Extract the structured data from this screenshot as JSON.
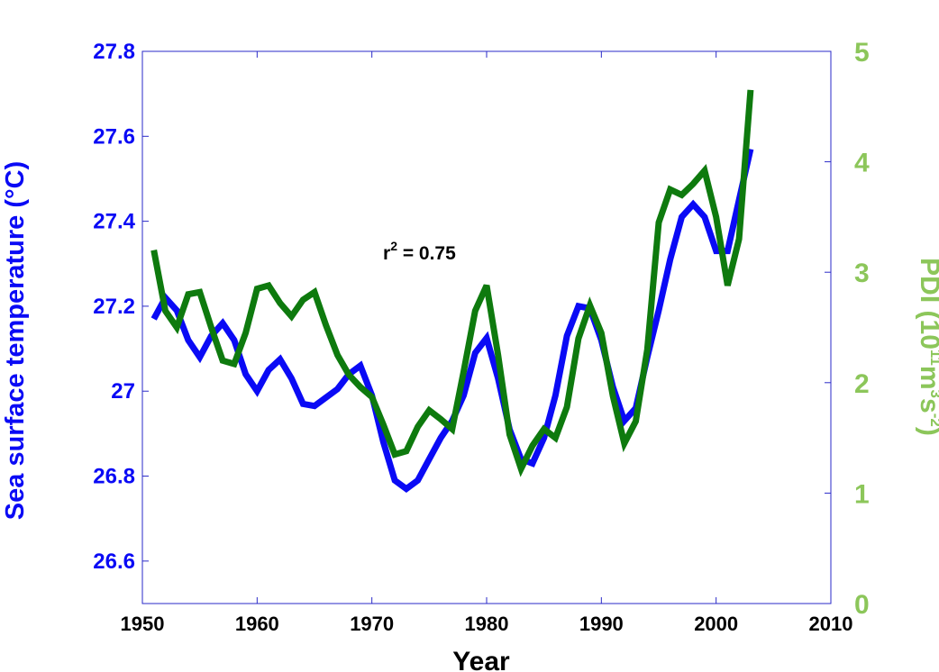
{
  "chart_data": {
    "type": "line",
    "xlabel": "Year",
    "xlim": [
      1950,
      2010
    ],
    "xticks": [
      "1950",
      "1960",
      "1970",
      "1980",
      "1990",
      "2000",
      "2010"
    ],
    "y_left": {
      "label_main": "Sea surface temperature (",
      "label_unit": "°C)",
      "ylim": [
        26.5,
        27.8
      ],
      "ticks": [
        "26.6",
        "26.8",
        "27",
        "27.2",
        "27.4",
        "27.6",
        "27.8"
      ],
      "color": "#0a0af5"
    },
    "y_right": {
      "label_prefix": "PDI (10",
      "label_exp1": "11",
      "label_mid1": "m",
      "label_exp2": "3",
      "label_mid2": "s",
      "label_exp3": "-2",
      "label_suffix": ")",
      "ylim": [
        0,
        5
      ],
      "ticks": [
        "0",
        "1",
        "2",
        "3",
        "4",
        "5"
      ],
      "color": "#8cc65a"
    },
    "annotation": {
      "base": "r",
      "sup": "2",
      "rest": " = 0.75"
    },
    "series": [
      {
        "axis": "left",
        "color": "#0a0af5",
        "x": [
          1951,
          1952,
          1953,
          1954,
          1955,
          1956,
          1957,
          1958,
          1959,
          1960,
          1961,
          1962,
          1963,
          1964,
          1965,
          1966,
          1967,
          1968,
          1969,
          1970,
          1971,
          1972,
          1973,
          1974,
          1975,
          1976,
          1977,
          1978,
          1979,
          1980,
          1981,
          1982,
          1983,
          1984,
          1985,
          1986,
          1987,
          1988,
          1989,
          1990,
          1991,
          1992,
          1993,
          1994,
          1995,
          1996,
          1997,
          1998,
          1999,
          2000,
          2001,
          2002,
          2003
        ],
        "values": [
          27.17,
          27.22,
          27.19,
          27.12,
          27.08,
          27.13,
          27.16,
          27.12,
          27.04,
          27.0,
          27.05,
          27.075,
          27.03,
          26.97,
          26.965,
          26.985,
          27.005,
          27.04,
          27.06,
          26.99,
          26.88,
          26.79,
          26.77,
          26.79,
          26.84,
          26.89,
          26.93,
          26.99,
          27.09,
          27.125,
          27.03,
          26.91,
          26.84,
          26.83,
          26.89,
          26.99,
          27.13,
          27.2,
          27.195,
          27.12,
          27.01,
          26.93,
          26.96,
          27.08,
          27.19,
          27.31,
          27.41,
          27.44,
          27.41,
          27.33,
          27.33,
          27.45,
          27.57
        ]
      },
      {
        "axis": "right",
        "color": "#0e7a0e",
        "x": [
          1951,
          1952,
          1953,
          1954,
          1955,
          1956,
          1957,
          1958,
          1959,
          1960,
          1961,
          1962,
          1963,
          1964,
          1965,
          1966,
          1967,
          1968,
          1969,
          1970,
          1971,
          1972,
          1973,
          1974,
          1975,
          1976,
          1977,
          1978,
          1979,
          1980,
          1981,
          1982,
          1983,
          1984,
          1985,
          1986,
          1987,
          1988,
          1989,
          1990,
          1991,
          1992,
          1993,
          1994,
          1995,
          1996,
          1997,
          1998,
          1999,
          2000,
          2001,
          2002,
          2003
        ],
        "values": [
          3.2,
          2.65,
          2.5,
          2.8,
          2.82,
          2.5,
          2.2,
          2.17,
          2.45,
          2.85,
          2.88,
          2.72,
          2.6,
          2.75,
          2.82,
          2.52,
          2.25,
          2.07,
          1.96,
          1.87,
          1.62,
          1.35,
          1.38,
          1.6,
          1.75,
          1.67,
          1.58,
          2.1,
          2.65,
          2.88,
          2.25,
          1.53,
          1.22,
          1.43,
          1.58,
          1.5,
          1.78,
          2.4,
          2.7,
          2.45,
          1.88,
          1.45,
          1.65,
          2.3,
          3.45,
          3.75,
          3.7,
          3.8,
          3.92,
          3.5,
          2.88,
          3.3,
          4.65
        ]
      }
    ]
  }
}
